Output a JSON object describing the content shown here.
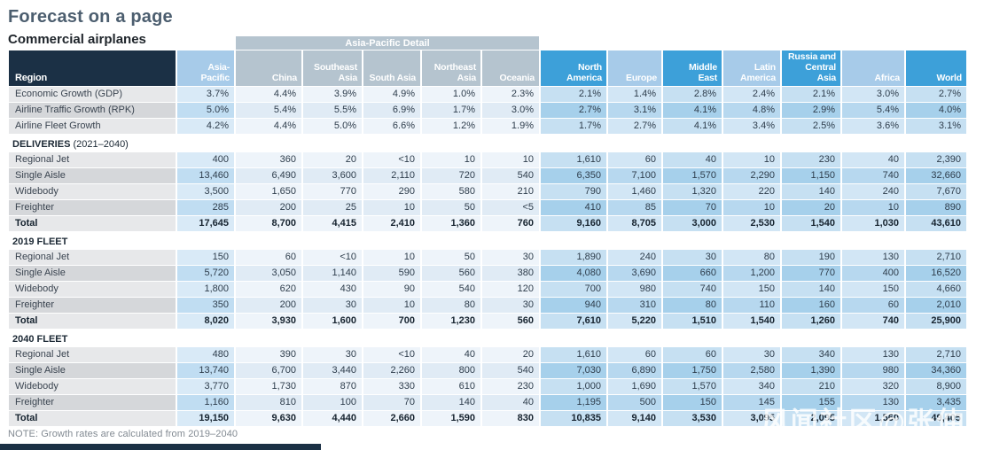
{
  "page": {
    "title": "Forecast on a page",
    "subtitle": "Commercial airplanes",
    "note": "NOTE: Growth rates are calculated from 2019–2040",
    "watermark": "风闻社区@张仲麟"
  },
  "colors": {
    "header_dark": "#1b3045",
    "header_gray_blue": "#b5c4cf",
    "header_light_blue": "#a7cbe9",
    "header_mid_blue": "#3da0d9",
    "title_text": "#4c5e6f"
  },
  "table": {
    "detail_band_label": "Asia-Pacific Detail",
    "region_header": "Region",
    "columns": [
      {
        "label": "Asia-Pacific",
        "header_style": "light",
        "body_style": "ap"
      },
      {
        "label": "China",
        "header_style": "gray",
        "body_style": "detail"
      },
      {
        "label": "Southeast Asia",
        "header_style": "gray",
        "body_style": "detail"
      },
      {
        "label": "South Asia",
        "header_style": "gray",
        "body_style": "detail"
      },
      {
        "label": "Northeast Asia",
        "header_style": "gray",
        "body_style": "detail"
      },
      {
        "label": "Oceania",
        "header_style": "gray",
        "body_style": "detail"
      },
      {
        "label": "North America",
        "header_style": "mid",
        "body_style": "strong"
      },
      {
        "label": "Europe",
        "header_style": "light",
        "body_style": "soft"
      },
      {
        "label": "Middle East",
        "header_style": "mid",
        "body_style": "strong"
      },
      {
        "label": "Latin America",
        "header_style": "light",
        "body_style": "soft"
      },
      {
        "label": "Russia and Central Asia",
        "header_style": "mid",
        "body_style": "strong"
      },
      {
        "label": "Africa",
        "header_style": "light",
        "body_style": "soft"
      },
      {
        "label": "World",
        "header_style": "mid",
        "body_style": "strong"
      }
    ],
    "sections": [
      {
        "title": null,
        "title_suffix": "",
        "rows": [
          {
            "label": "Economic Growth (GDP)",
            "total": false,
            "values": [
              "3.7%",
              "4.4%",
              "3.9%",
              "4.9%",
              "1.0%",
              "2.3%",
              "2.1%",
              "1.4%",
              "2.8%",
              "2.4%",
              "2.1%",
              "3.0%",
              "2.7%"
            ]
          },
          {
            "label": "Airline Traffic Growth (RPK)",
            "total": false,
            "values": [
              "5.0%",
              "5.4%",
              "5.5%",
              "6.9%",
              "1.7%",
              "3.0%",
              "2.7%",
              "3.1%",
              "4.1%",
              "4.8%",
              "2.9%",
              "5.4%",
              "4.0%"
            ]
          },
          {
            "label": "Airline Fleet Growth",
            "total": false,
            "values": [
              "4.2%",
              "4.4%",
              "5.0%",
              "6.6%",
              "1.2%",
              "1.9%",
              "1.7%",
              "2.7%",
              "4.1%",
              "3.4%",
              "2.5%",
              "3.6%",
              "3.1%"
            ]
          }
        ]
      },
      {
        "title": "DELIVERIES",
        "title_suffix": " (2021–2040)",
        "rows": [
          {
            "label": "Regional Jet",
            "total": false,
            "values": [
              "400",
              "360",
              "20",
              "<10",
              "10",
              "10",
              "1,610",
              "60",
              "40",
              "10",
              "230",
              "40",
              "2,390"
            ]
          },
          {
            "label": "Single Aisle",
            "total": false,
            "values": [
              "13,460",
              "6,490",
              "3,600",
              "2,110",
              "720",
              "540",
              "6,350",
              "7,100",
              "1,570",
              "2,290",
              "1,150",
              "740",
              "32,660"
            ]
          },
          {
            "label": "Widebody",
            "total": false,
            "values": [
              "3,500",
              "1,650",
              "770",
              "290",
              "580",
              "210",
              "790",
              "1,460",
              "1,320",
              "220",
              "140",
              "240",
              "7,670"
            ]
          },
          {
            "label": "Freighter",
            "total": false,
            "values": [
              "285",
              "200",
              "25",
              "10",
              "50",
              "<5",
              "410",
              "85",
              "70",
              "10",
              "20",
              "10",
              "890"
            ]
          },
          {
            "label": "Total",
            "total": true,
            "values": [
              "17,645",
              "8,700",
              "4,415",
              "2,410",
              "1,360",
              "760",
              "9,160",
              "8,705",
              "3,000",
              "2,530",
              "1,540",
              "1,030",
              "43,610"
            ]
          }
        ]
      },
      {
        "title": "2019 FLEET",
        "title_suffix": "",
        "rows": [
          {
            "label": "Regional Jet",
            "total": false,
            "values": [
              "150",
              "60",
              "<10",
              "10",
              "50",
              "30",
              "1,890",
              "240",
              "30",
              "80",
              "190",
              "130",
              "2,710"
            ]
          },
          {
            "label": "Single Aisle",
            "total": false,
            "values": [
              "5,720",
              "3,050",
              "1,140",
              "590",
              "560",
              "380",
              "4,080",
              "3,690",
              "660",
              "1,200",
              "770",
              "400",
              "16,520"
            ]
          },
          {
            "label": "Widebody",
            "total": false,
            "values": [
              "1,800",
              "620",
              "430",
              "90",
              "540",
              "120",
              "700",
              "980",
              "740",
              "150",
              "140",
              "150",
              "4,660"
            ]
          },
          {
            "label": "Freighter",
            "total": false,
            "values": [
              "350",
              "200",
              "30",
              "10",
              "80",
              "30",
              "940",
              "310",
              "80",
              "110",
              "160",
              "60",
              "2,010"
            ]
          },
          {
            "label": "Total",
            "total": true,
            "values": [
              "8,020",
              "3,930",
              "1,600",
              "700",
              "1,230",
              "560",
              "7,610",
              "5,220",
              "1,510",
              "1,540",
              "1,260",
              "740",
              "25,900"
            ]
          }
        ]
      },
      {
        "title": "2040 FLEET",
        "title_suffix": "",
        "rows": [
          {
            "label": "Regional Jet",
            "total": false,
            "values": [
              "480",
              "390",
              "30",
              "<10",
              "40",
              "20",
              "1,610",
              "60",
              "60",
              "30",
              "340",
              "130",
              "2,710"
            ]
          },
          {
            "label": "Single Aisle",
            "total": false,
            "values": [
              "13,740",
              "6,700",
              "3,440",
              "2,260",
              "800",
              "540",
              "7,030",
              "6,890",
              "1,750",
              "2,580",
              "1,390",
              "980",
              "34,360"
            ]
          },
          {
            "label": "Widebody",
            "total": false,
            "values": [
              "3,770",
              "1,730",
              "870",
              "330",
              "610",
              "230",
              "1,000",
              "1,690",
              "1,570",
              "340",
              "210",
              "320",
              "8,900"
            ]
          },
          {
            "label": "Freighter",
            "total": false,
            "values": [
              "1,160",
              "810",
              "100",
              "70",
              "140",
              "40",
              "1,195",
              "500",
              "150",
              "145",
              "155",
              "130",
              "3,435"
            ]
          },
          {
            "label": "Total",
            "total": true,
            "values": [
              "19,150",
              "9,630",
              "4,440",
              "2,660",
              "1,590",
              "830",
              "10,835",
              "9,140",
              "3,530",
              "3,095",
              "2,095",
              "1,560",
              "49,405"
            ]
          }
        ]
      }
    ]
  }
}
